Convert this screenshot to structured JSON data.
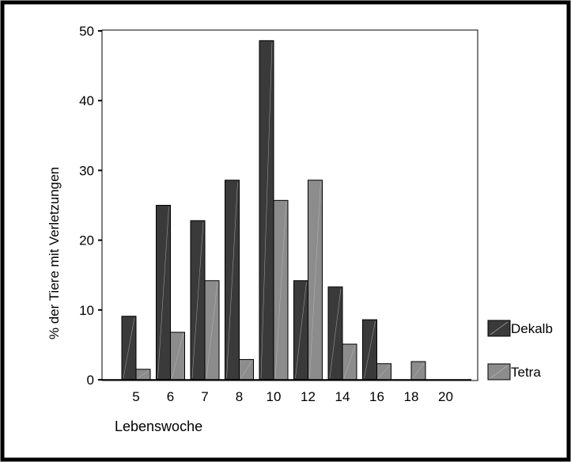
{
  "chart_data": {
    "type": "bar",
    "xlabel": "Lebenswoche",
    "ylabel": "% der Tiere mit Verletzungen",
    "categories": [
      "5",
      "6",
      "7",
      "8",
      "10",
      "12",
      "14",
      "16",
      "18",
      "20"
    ],
    "yticks": [
      "0",
      "10",
      "20",
      "30",
      "40",
      "50"
    ],
    "ylim": [
      0,
      50
    ],
    "grid": false,
    "legend_position": "right",
    "series": [
      {
        "name": "Dekalb",
        "color": "#3a3a3a",
        "values": [
          9.1,
          25.0,
          22.8,
          28.6,
          48.6,
          14.2,
          13.3,
          8.6,
          0,
          0
        ]
      },
      {
        "name": "Tetra",
        "color": "#8c8c8c",
        "values": [
          1.5,
          6.8,
          14.2,
          2.9,
          25.7,
          28.6,
          5.1,
          2.3,
          2.6,
          0
        ]
      }
    ]
  }
}
